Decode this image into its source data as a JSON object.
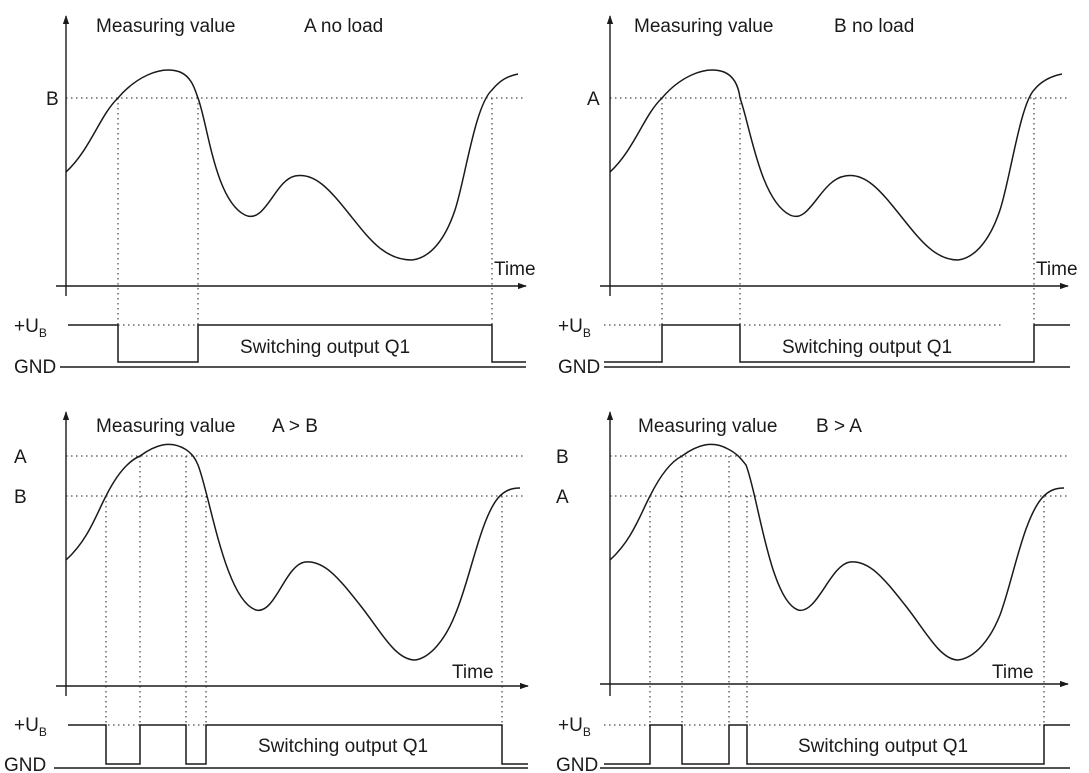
{
  "panels": [
    {
      "heading": "Measuring value",
      "mode": "A no load",
      "upper_label": "B",
      "lower_label": "",
      "time_label": "Time",
      "ub_label": "+U",
      "ub_sub": "B",
      "gnd_label": "GND",
      "output_label": "Switching output Q1"
    },
    {
      "heading": "Measuring value",
      "mode": "B no load",
      "upper_label": "A",
      "lower_label": "",
      "time_label": "Time",
      "ub_label": "+U",
      "ub_sub": "B",
      "gnd_label": "GND",
      "output_label": "Switching output Q1"
    },
    {
      "heading": "Measuring value",
      "mode": "A > B",
      "upper_label": "A",
      "lower_label": "B",
      "time_label": "Time",
      "ub_label": "+U",
      "ub_sub": "B",
      "gnd_label": "GND",
      "output_label": "Switching output Q1"
    },
    {
      "heading": "Measuring value",
      "mode": "B > A",
      "upper_label": "B",
      "lower_label": "A",
      "time_label": "Time",
      "ub_label": "+U",
      "ub_sub": "B",
      "gnd_label": "GND",
      "output_label": "Switching output Q1"
    }
  ]
}
